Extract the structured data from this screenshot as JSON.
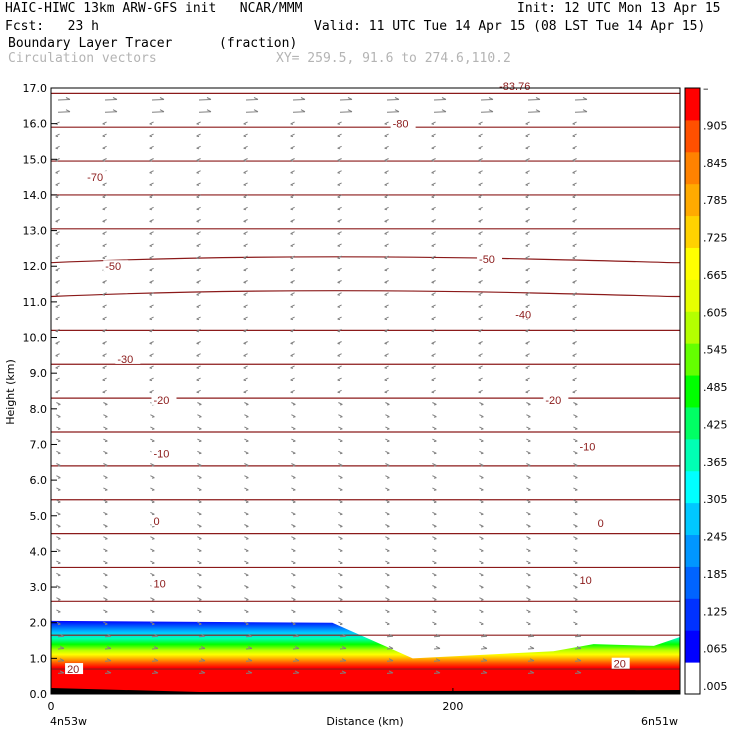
{
  "header": {
    "line1_left": "HAIC-HIWC 13km ARW-GFS init   NCAR/MMM",
    "line1_right": "Init: 12 UTC Mon 13 Apr 15",
    "line2_left": "Fcst:   23 h",
    "line2_right": "Valid: 11 UTC Tue 14 Apr 15 (08 LST Tue 14 Apr 15)",
    "field_name": "Boundary Layer Tracer",
    "field_units": "(fraction)",
    "overlay_name": "Circulation vectors",
    "xy_text": "XY= 259.5, 91.6 to 274.6,110.2"
  },
  "colors": {
    "contour": "#8b1a1a",
    "vector": "#808080",
    "colorbar": [
      "#ffffff",
      "#0000ff",
      "#0032ff",
      "#0064ff",
      "#0096ff",
      "#00c8ff",
      "#00ffff",
      "#00ffb4",
      "#00ff64",
      "#00ff00",
      "#64ff00",
      "#b4ff00",
      "#e6ff00",
      "#ffff00",
      "#ffd200",
      "#ffaa00",
      "#ff8200",
      "#ff5000",
      "#ff0000"
    ]
  },
  "chart_data": {
    "type": "cross-section",
    "xlabel": "Distance (km)",
    "ylabel": "Height (km)",
    "x_ticks": [
      "0",
      "200"
    ],
    "x_end_labels": [
      "4n53w",
      "6n51w"
    ],
    "xlim": [
      0,
      313
    ],
    "ylim": [
      0,
      17
    ],
    "y_ticks": [
      "0.0",
      "1.0",
      "2.0",
      "3.0",
      "4.0",
      "5.0",
      "6.0",
      "7.0",
      "8.0",
      "9.0",
      "10.0",
      "11.0",
      "12.0",
      "13.0",
      "14.0",
      "15.0",
      "16.0",
      "17.0"
    ],
    "colorbar_labels": [
      ".005",
      ".065",
      ".125",
      ".185",
      ".245",
      ".305",
      ".365",
      ".425",
      ".485",
      ".545",
      ".605",
      ".665",
      ".725",
      ".785",
      ".845",
      ".905",
      "–"
    ],
    "tracer_top_km": [
      [
        0,
        2.05
      ],
      [
        140,
        2.0
      ],
      [
        160,
        1.5
      ],
      [
        180,
        1.0
      ],
      [
        250,
        1.2
      ],
      [
        270,
        1.4
      ],
      [
        300,
        1.35
      ],
      [
        313,
        1.6
      ]
    ],
    "contour_labels": [
      {
        "text": "-80",
        "x": 170,
        "y": 16.0
      },
      {
        "text": "-83.76",
        "x": 223,
        "y": 17.05
      },
      {
        "text": "-70",
        "x": 18,
        "y": 14.5
      },
      {
        "text": "-50",
        "x": 27,
        "y": 12.0
      },
      {
        "text": "-50",
        "x": 213,
        "y": 12.2
      },
      {
        "text": "-40",
        "x": 231,
        "y": 10.65
      },
      {
        "text": "-30",
        "x": 33,
        "y": 9.4
      },
      {
        "text": "-20",
        "x": 51,
        "y": 8.25
      },
      {
        "text": "-20",
        "x": 246,
        "y": 8.25
      },
      {
        "text": "-10",
        "x": 51,
        "y": 6.75
      },
      {
        "text": "-10",
        "x": 263,
        "y": 6.95
      },
      {
        "text": "0",
        "x": 51,
        "y": 4.85
      },
      {
        "text": "0",
        "x": 272,
        "y": 4.8
      },
      {
        "text": "10",
        "x": 51,
        "y": 3.1
      },
      {
        "text": "10",
        "x": 263,
        "y": 3.2
      },
      {
        "text": "20",
        "x": 8,
        "y": 0.7
      },
      {
        "text": "20",
        "x": 280,
        "y": 0.85
      }
    ]
  }
}
